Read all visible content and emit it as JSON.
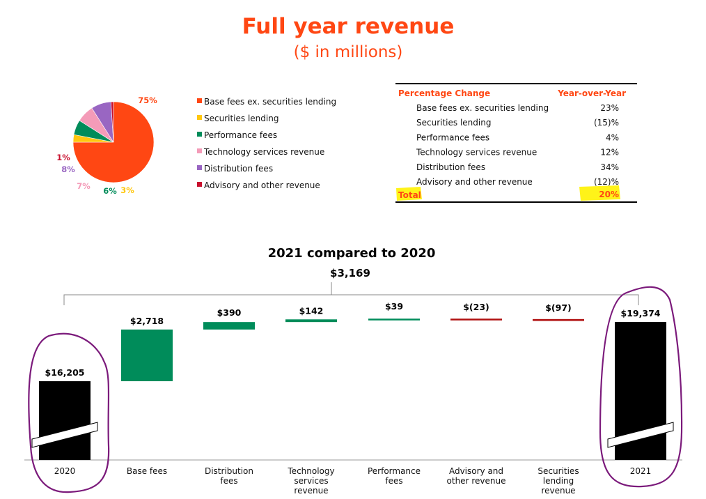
{
  "header": {
    "title": "Full year revenue",
    "subtitle": "($ in millions)"
  },
  "colors": {
    "accent": "#ff4713",
    "base_fees": "#ff4713",
    "securities_lending": "#ffc70f",
    "performance_fees": "#008c5a",
    "technology": "#f49bb8",
    "distribution": "#9966c2",
    "advisory": "#c8102e",
    "positive": "#008c5a",
    "negative": "#b00f0f",
    "total_bar": "#000000",
    "highlight": "#fff200",
    "annotation": "#7b1a7b"
  },
  "chart_data": [
    {
      "type": "pie",
      "slices": [
        {
          "label": "Base fees ex. securities lending",
          "value": 75,
          "value_label": "75%",
          "color": "#ff4713"
        },
        {
          "label": "Securities lending",
          "value": 3,
          "value_label": "3%",
          "color": "#ffc70f"
        },
        {
          "label": "Performance fees",
          "value": 6,
          "value_label": "6%",
          "color": "#008c5a"
        },
        {
          "label": "Technology services revenue",
          "value": 7,
          "value_label": "7%",
          "color": "#f49bb8"
        },
        {
          "label": "Distribution fees",
          "value": 8,
          "value_label": "8%",
          "color": "#9966c2"
        },
        {
          "label": "Advisory and other revenue",
          "value": 1,
          "value_label": "1%",
          "color": "#c8102e"
        }
      ],
      "legend": "right"
    },
    {
      "type": "table",
      "columns": [
        "Percentage Change",
        "Year-over-Year"
      ],
      "rows": [
        {
          "label": "Base fees ex. securities lending",
          "value": "23%"
        },
        {
          "label": "Securities lending",
          "value": "(15)%"
        },
        {
          "label": "Performance fees",
          "value": "4%"
        },
        {
          "label": "Technology services revenue",
          "value": "12%"
        },
        {
          "label": "Distribution fees",
          "value": "34%"
        },
        {
          "label": "Advisory and other revenue",
          "value": "(12)%"
        }
      ],
      "total": {
        "label": "Total",
        "value": "20%"
      }
    },
    {
      "type": "bar",
      "subtype": "waterfall",
      "title": "2021 compared to 2020",
      "total_change_label": "$3,169",
      "steps": [
        {
          "category": "2020",
          "value": 16205,
          "label": "$16,205",
          "kind": "total"
        },
        {
          "category": "Base fees",
          "value": 2718,
          "label": "$2,718",
          "kind": "delta"
        },
        {
          "category": "Distribution fees",
          "value": 390,
          "label": "$390",
          "kind": "delta"
        },
        {
          "category": "Technology services revenue",
          "value": 142,
          "label": "$142",
          "kind": "delta"
        },
        {
          "category": "Performance fees",
          "value": 39,
          "label": "$39",
          "kind": "delta"
        },
        {
          "category": "Advisory and other revenue",
          "value": -23,
          "label": "$(23)",
          "kind": "delta"
        },
        {
          "category": "Securities lending revenue",
          "value": -97,
          "label": "$(97)",
          "kind": "delta"
        },
        {
          "category": "2021",
          "value": 19374,
          "label": "$19,374",
          "kind": "total"
        }
      ],
      "axis_break": true
    }
  ]
}
